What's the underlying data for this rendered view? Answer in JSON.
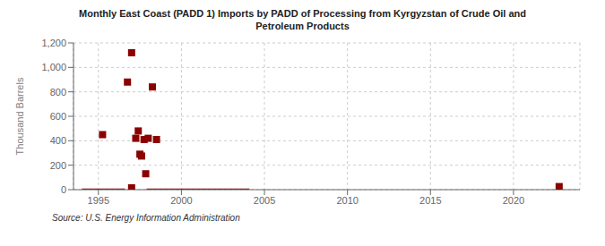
{
  "chart_data": {
    "type": "scatter",
    "title": "Monthly East Coast (PADD 1) Imports by PADD of Processing from Kyrgyzstan of Crude Oil and\nPetroleum Products",
    "y_label": "Thousand Barrels",
    "source": "Source: U.S. Energy Information Administration",
    "xlim": [
      1993.5,
      2024
    ],
    "xticks": [
      1995,
      2000,
      2005,
      2010,
      2015,
      2020
    ],
    "ylim": [
      0,
      1200
    ],
    "yticks": [
      0,
      200,
      400,
      600,
      800,
      {
        "value": 1000,
        "label": "1,000"
      },
      {
        "value": 1200,
        "label": "1,200"
      }
    ],
    "grid": true,
    "series": [
      {
        "type": "scatter",
        "color": "#8b0000",
        "marker": "square",
        "x": [
          1995.25,
          1996.75,
          1997.0,
          1997.25,
          1997.4,
          1997.5,
          1997.6,
          1997.75,
          1997.85,
          1998.0,
          1998.25,
          1998.5,
          2022.75
        ],
        "values": [
          450,
          880,
          1120,
          420,
          480,
          290,
          275,
          410,
          130,
          420,
          840,
          410,
          25
        ]
      },
      {
        "type": "scatter",
        "color": "#8b0000",
        "marker": "square",
        "x": [
          1997.0
        ],
        "values": [
          15
        ]
      },
      {
        "type": "line",
        "color": "#8b0000",
        "line_style": "solid",
        "x": [
          1994.0,
          1996.6
        ],
        "values": [
          0,
          0
        ]
      },
      {
        "type": "line",
        "color": "#8b0000",
        "line_style": "solid",
        "x": [
          1997.9,
          2004.1
        ],
        "values": [
          0,
          0
        ]
      }
    ]
  }
}
